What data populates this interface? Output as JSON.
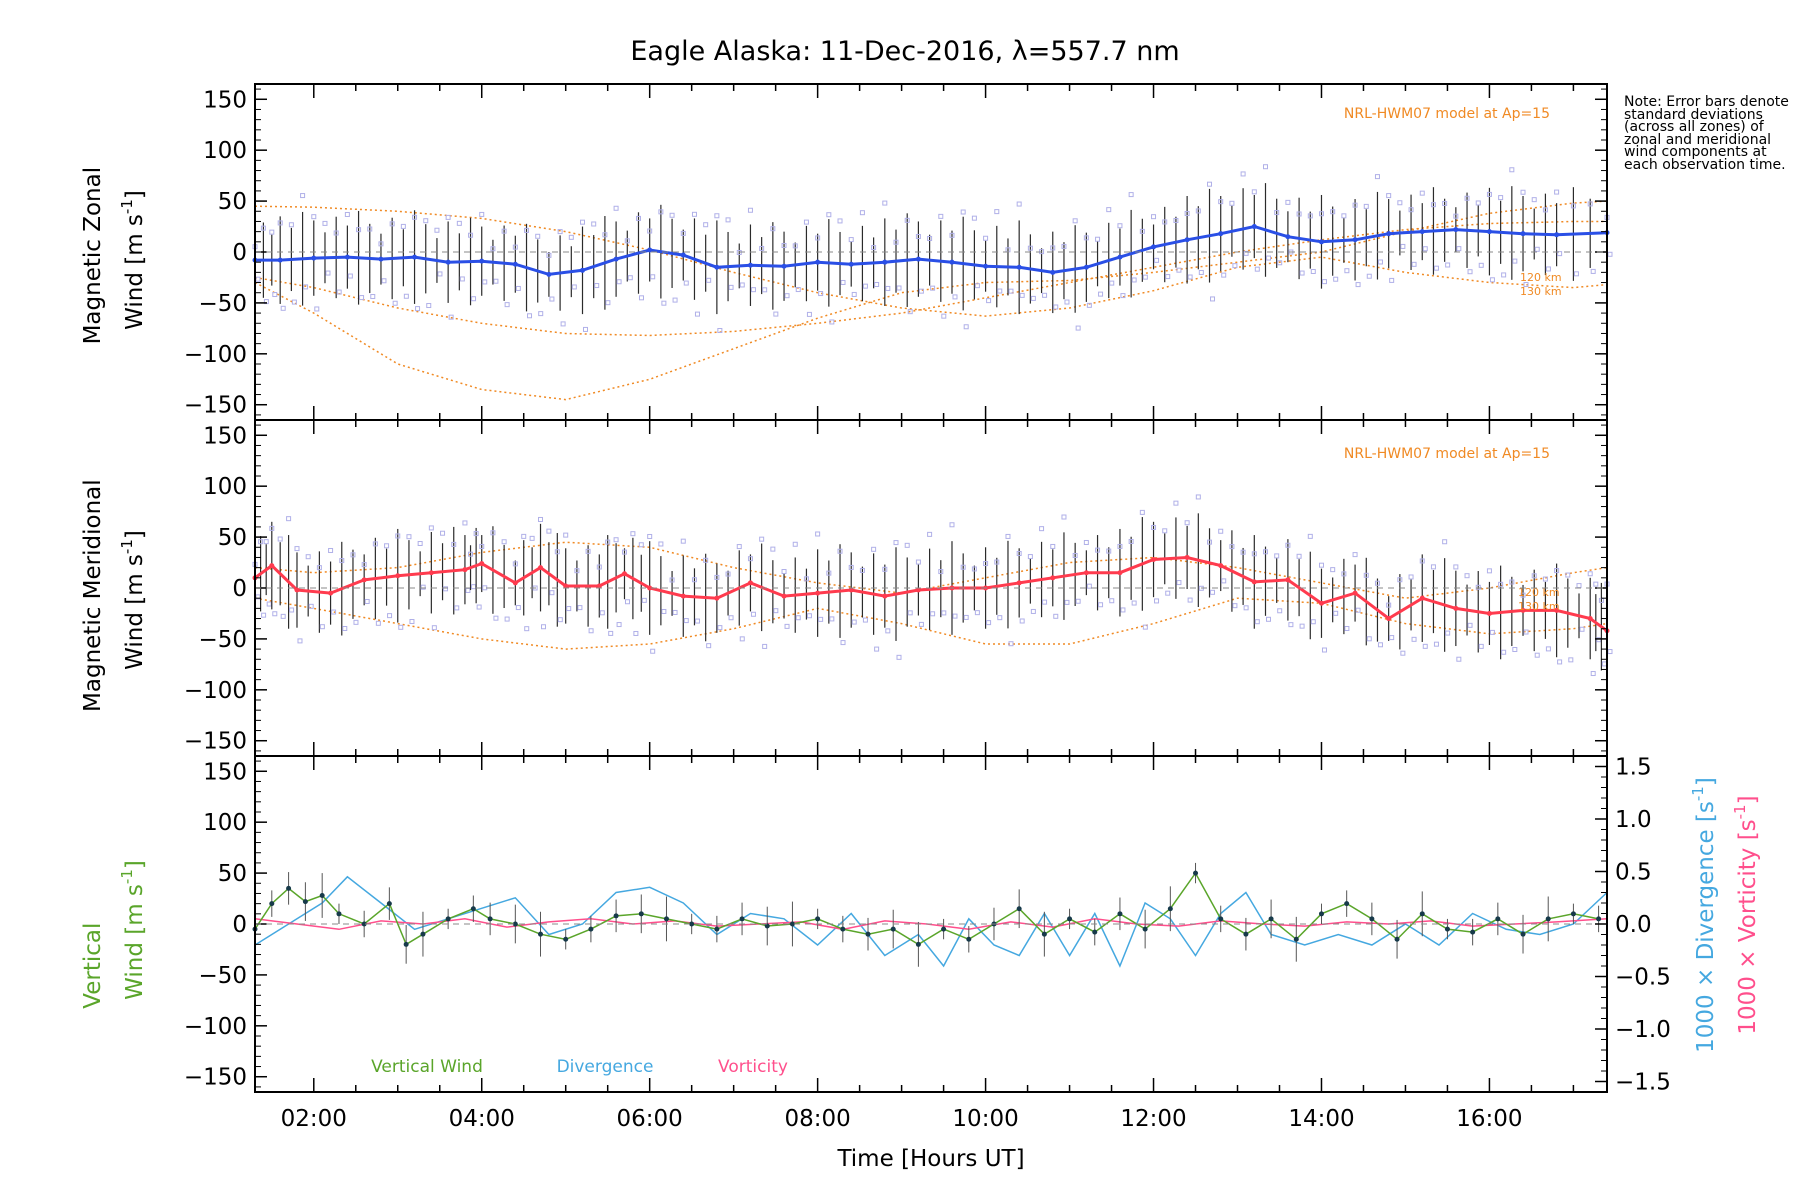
{
  "figure": {
    "title": "Eagle Alaska: 11-Dec-2016, λ=557.7 nm",
    "note": "Note: Error bars denote standard deviations (across all zones) of zonal and meridional wind components at each observation time.",
    "colors": {
      "zonal": "#2a4fe6",
      "meridional": "#ff3b4e",
      "model": "#f08a24",
      "zone_points": "#b0b0e8",
      "vertical": "#5aa52a",
      "divergence": "#45a8e0",
      "vorticity": "#ff4f8c"
    }
  },
  "chart_data": [
    {
      "type": "line",
      "panel": "zonal",
      "ylabel_line1": "Magnetic Zonal",
      "ylabel_line2": "Wind [m s",
      "ylabel_sup": "-1",
      "ylabel_end": "]",
      "xlim": [
        1.3,
        17.4
      ],
      "ylim": [
        -165,
        165
      ],
      "yticks": [
        150,
        100,
        50,
        0,
        -50,
        -100,
        -150
      ],
      "model_label": "NRL-HWM07 model at Ap=15",
      "model_alt_labels": [
        "120 km",
        "130 km"
      ],
      "series": [
        {
          "role": "zonal-wind",
          "x": [
            1.3,
            1.6,
            2.0,
            2.4,
            2.8,
            3.2,
            3.6,
            4.0,
            4.4,
            4.8,
            5.2,
            5.6,
            6.0,
            6.4,
            6.8,
            7.2,
            7.6,
            8.0,
            8.4,
            8.8,
            9.2,
            9.6,
            10.0,
            10.4,
            10.8,
            11.2,
            11.6,
            12.0,
            12.4,
            12.8,
            13.2,
            13.6,
            14.0,
            14.4,
            14.8,
            15.2,
            15.6,
            16.0,
            16.4,
            16.8,
            17.4
          ],
          "y": [
            -8,
            -8,
            -6,
            -5,
            -7,
            -5,
            -10,
            -9,
            -12,
            -22,
            -18,
            -7,
            2,
            -3,
            -15,
            -13,
            -14,
            -10,
            -12,
            -10,
            -7,
            -10,
            -14,
            -15,
            -20,
            -15,
            -5,
            5,
            12,
            18,
            25,
            15,
            10,
            12,
            18,
            20,
            22,
            20,
            18,
            17,
            19
          ]
        },
        {
          "role": "model-hwm07-120km",
          "x": [
            1.3,
            2,
            3,
            4,
            5,
            6,
            7,
            8,
            9,
            10,
            11,
            12,
            13,
            14,
            15,
            16,
            17,
            17.4
          ],
          "y": [
            45,
            44,
            40,
            33,
            20,
            2,
            -20,
            -40,
            -55,
            -63,
            -55,
            -38,
            -15,
            -5,
            -20,
            -30,
            -35,
            -32
          ]
        },
        {
          "role": "model-hwm07-130km",
          "x": [
            1.3,
            2,
            3,
            4,
            5,
            6,
            7,
            8,
            9,
            10,
            11,
            12,
            13,
            14,
            15,
            16,
            17,
            17.4
          ],
          "y": [
            -30,
            -60,
            -110,
            -135,
            -145,
            -125,
            -95,
            -65,
            -40,
            -30,
            -28,
            -20,
            -10,
            0,
            20,
            38,
            48,
            50
          ]
        },
        {
          "role": "model-hwm07-other",
          "x": [
            1.3,
            2,
            3,
            4,
            5,
            6,
            7,
            8,
            9,
            10,
            11,
            12,
            13,
            14,
            15,
            16,
            17,
            17.4
          ],
          "y": [
            -25,
            -35,
            -55,
            -70,
            -80,
            -82,
            -78,
            -70,
            -60,
            -45,
            -30,
            -15,
            0,
            12,
            22,
            28,
            30,
            30
          ]
        }
      ]
    },
    {
      "type": "line",
      "panel": "meridional",
      "ylabel_line1": "Magnetic Meridional",
      "ylabel_line2": "Wind [m s",
      "ylabel_sup": "-1",
      "ylabel_end": "]",
      "xlim": [
        1.3,
        17.4
      ],
      "ylim": [
        -165,
        165
      ],
      "yticks": [
        150,
        100,
        50,
        0,
        -50,
        -100,
        -150
      ],
      "model_label": "NRL-HWM07 model at Ap=15",
      "model_alt_labels": [
        "120 km",
        "130 km"
      ],
      "series": [
        {
          "role": "meridional-wind",
          "x": [
            1.3,
            1.5,
            1.8,
            2.2,
            2.6,
            3.0,
            3.4,
            3.8,
            4.0,
            4.4,
            4.7,
            5.0,
            5.4,
            5.7,
            6.0,
            6.4,
            6.8,
            7.2,
            7.6,
            8.0,
            8.4,
            8.8,
            9.2,
            9.6,
            10.0,
            10.4,
            10.8,
            11.2,
            11.6,
            12.0,
            12.4,
            12.8,
            13.2,
            13.6,
            14.0,
            14.4,
            14.8,
            15.2,
            15.6,
            16.0,
            16.4,
            16.8,
            17.2,
            17.4
          ],
          "y": [
            10,
            22,
            -2,
            -5,
            8,
            12,
            15,
            18,
            24,
            5,
            20,
            2,
            2,
            14,
            0,
            -8,
            -10,
            5,
            -8,
            -5,
            -2,
            -8,
            -2,
            0,
            0,
            5,
            10,
            15,
            15,
            28,
            30,
            22,
            6,
            8,
            -15,
            -5,
            -30,
            -10,
            -20,
            -25,
            -22,
            -22,
            -30,
            -42
          ]
        },
        {
          "role": "model-hwm07-a",
          "x": [
            1.3,
            2,
            3,
            4,
            5,
            6,
            7,
            8,
            9,
            10,
            11,
            12,
            13,
            14,
            15,
            16,
            17,
            17.4
          ],
          "y": [
            -10,
            -20,
            -35,
            -50,
            -60,
            -55,
            -40,
            -20,
            -35,
            -55,
            -55,
            -35,
            -10,
            -15,
            -35,
            -45,
            -40,
            -35
          ]
        },
        {
          "role": "model-hwm07-b",
          "x": [
            1.3,
            2,
            3,
            4,
            5,
            6,
            7,
            8,
            9,
            10,
            11,
            12,
            13,
            14,
            15,
            16,
            17,
            17.4
          ],
          "y": [
            20,
            15,
            20,
            35,
            45,
            40,
            20,
            5,
            -5,
            10,
            25,
            30,
            20,
            5,
            -10,
            0,
            15,
            20
          ]
        }
      ]
    },
    {
      "type": "line",
      "panel": "vertical",
      "ylabel_line1": "Vertical",
      "ylabel_line2": "Wind [m s",
      "ylabel_sup": "-1",
      "ylabel_end": "]",
      "y2label_a": "1000 × Divergence [s",
      "y2label_b": "1000 × Vorticity [s",
      "xlim": [
        1.3,
        17.4
      ],
      "ylim": [
        -165,
        165
      ],
      "yticks": [
        150,
        100,
        50,
        0,
        -50,
        -100,
        -150
      ],
      "y2lim": [
        -1.6,
        1.6
      ],
      "y2ticks": [
        "1.5",
        "1.0",
        "0.5",
        "0.0",
        "-0.5",
        "-1.0",
        "-1.5"
      ],
      "xticks": [
        "02:00",
        "04:00",
        "06:00",
        "08:00",
        "10:00",
        "12:00",
        "14:00",
        "16:00"
      ],
      "xlabel": "Time [Hours UT]",
      "legend": [
        "Vertical Wind",
        "Divergence",
        "Vorticity"
      ],
      "series": [
        {
          "name": "Vertical Wind",
          "x": [
            1.3,
            1.5,
            1.7,
            1.9,
            2.1,
            2.3,
            2.6,
            2.9,
            3.1,
            3.3,
            3.6,
            3.9,
            4.1,
            4.4,
            4.7,
            5.0,
            5.3,
            5.6,
            5.9,
            6.2,
            6.5,
            6.8,
            7.1,
            7.4,
            7.7,
            8.0,
            8.3,
            8.6,
            8.9,
            9.2,
            9.5,
            9.8,
            10.1,
            10.4,
            10.7,
            11.0,
            11.3,
            11.6,
            11.9,
            12.2,
            12.5,
            12.8,
            13.1,
            13.4,
            13.7,
            14.0,
            14.3,
            14.6,
            14.9,
            15.2,
            15.5,
            15.8,
            16.1,
            16.4,
            16.7,
            17.0,
            17.3
          ],
          "y": [
            -5,
            20,
            35,
            22,
            28,
            10,
            0,
            20,
            -20,
            -10,
            5,
            15,
            5,
            0,
            -10,
            -15,
            -5,
            8,
            10,
            5,
            0,
            -5,
            5,
            -2,
            0,
            5,
            -5,
            -10,
            -5,
            -20,
            -5,
            -15,
            0,
            15,
            -10,
            5,
            -8,
            10,
            -5,
            15,
            50,
            5,
            -10,
            5,
            -15,
            10,
            20,
            5,
            -15,
            10,
            -5,
            -8,
            5,
            -10,
            5,
            10,
            5
          ]
        },
        {
          "name": "Divergence",
          "x": [
            1.3,
            1.5,
            1.8,
            2.1,
            2.4,
            2.8,
            3.2,
            3.6,
            4.0,
            4.4,
            4.8,
            5.2,
            5.6,
            6.0,
            6.4,
            6.8,
            7.2,
            7.6,
            8.0,
            8.4,
            8.8,
            9.2,
            9.5,
            9.8,
            10.1,
            10.4,
            10.7,
            11.0,
            11.3,
            11.6,
            11.9,
            12.2,
            12.5,
            12.8,
            13.1,
            13.4,
            13.8,
            14.2,
            14.6,
            15.0,
            15.4,
            15.8,
            16.2,
            16.6,
            17.0,
            17.4
          ],
          "y": [
            -0.2,
            -0.1,
            0.05,
            0.2,
            0.45,
            0.2,
            -0.05,
            0.05,
            0.15,
            0.25,
            -0.1,
            0.0,
            0.3,
            0.35,
            0.2,
            -0.1,
            0.1,
            0.05,
            -0.2,
            0.1,
            -0.3,
            -0.1,
            -0.4,
            0.05,
            -0.2,
            -0.3,
            0.1,
            -0.3,
            0.1,
            -0.4,
            0.2,
            0.05,
            -0.3,
            0.1,
            0.3,
            -0.1,
            -0.2,
            -0.1,
            -0.2,
            0.0,
            -0.2,
            0.1,
            -0.05,
            -0.1,
            0.0,
            0.3
          ]
        },
        {
          "name": "Vorticity",
          "x": [
            1.3,
            1.8,
            2.3,
            2.8,
            3.3,
            3.8,
            4.3,
            4.8,
            5.3,
            5.8,
            6.3,
            6.8,
            7.3,
            7.8,
            8.3,
            8.8,
            9.3,
            9.8,
            10.3,
            10.8,
            11.3,
            11.8,
            12.3,
            12.8,
            13.3,
            13.8,
            14.3,
            14.8,
            15.3,
            15.8,
            16.3,
            16.8,
            17.4
          ],
          "y": [
            0.05,
            0.0,
            -0.05,
            0.03,
            0.0,
            0.05,
            -0.03,
            0.02,
            0.05,
            0.0,
            0.03,
            -0.02,
            0.0,
            0.02,
            -0.05,
            0.03,
            0.0,
            -0.05,
            0.02,
            -0.03,
            0.05,
            0.0,
            -0.02,
            0.03,
            0.0,
            -0.02,
            0.02,
            0.0,
            0.03,
            -0.02,
            0.0,
            0.02,
            0.05
          ]
        }
      ]
    }
  ]
}
